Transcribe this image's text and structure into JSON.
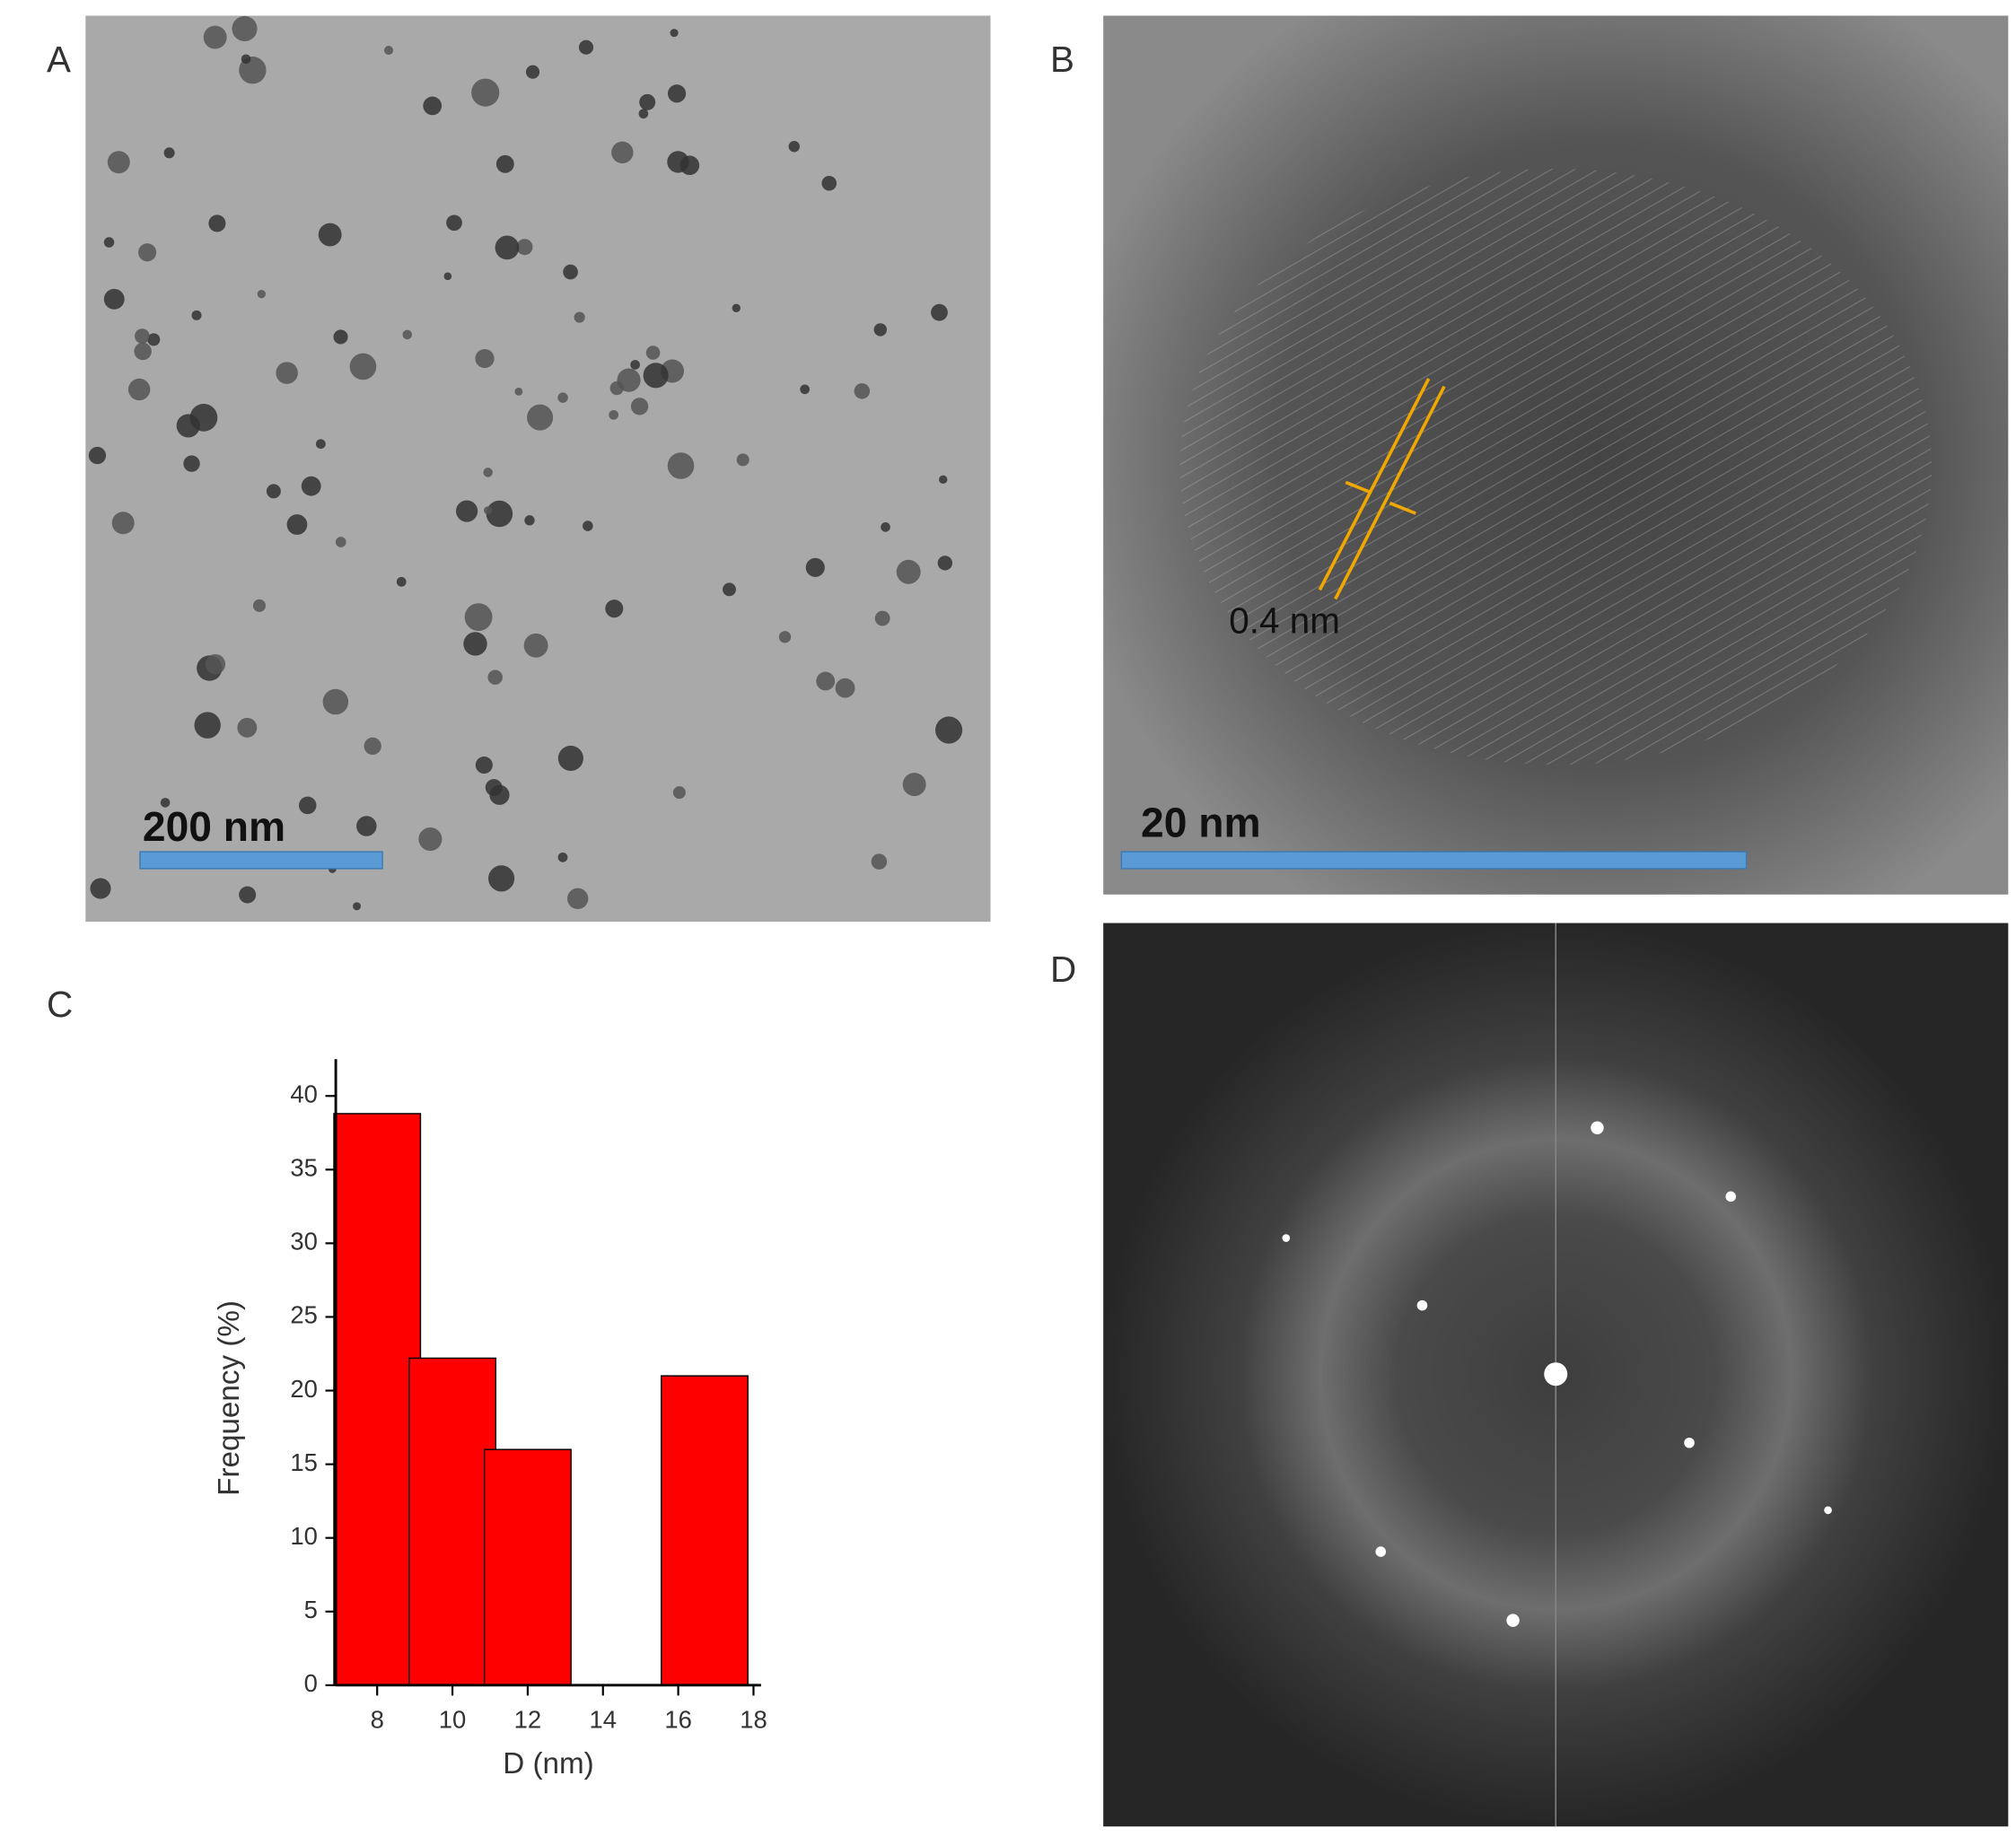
{
  "figure": {
    "panels": [
      "A",
      "B",
      "C",
      "D"
    ],
    "scale_a": "200 nm",
    "scale_b": "20 nm",
    "spacing_b": "0.4 nm"
  },
  "chart_data": {
    "type": "bar",
    "x": [
      8,
      10,
      12,
      16.7
    ],
    "values": [
      38.8,
      22.2,
      16.0,
      21.0
    ],
    "color": "#ff0000",
    "xlabel": "D (nm)",
    "ylabel": "Frequency (%)",
    "xlim": [
      6.9,
      18.2
    ],
    "xticks": [
      8,
      10,
      12,
      14,
      16,
      18
    ],
    "ylim": [
      0,
      42.5
    ],
    "yticks": [
      0,
      5,
      10,
      15,
      20,
      25,
      30,
      35,
      40
    ]
  }
}
